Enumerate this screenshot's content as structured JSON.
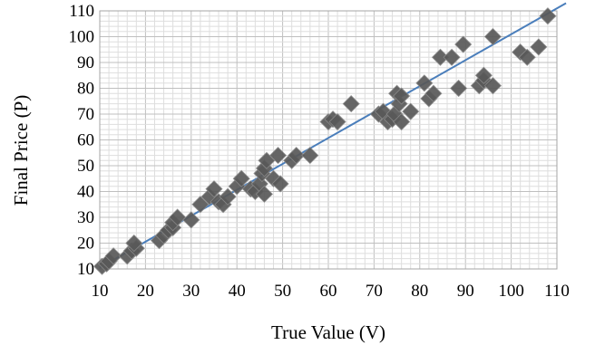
{
  "chart_data": {
    "type": "scatter",
    "title": "",
    "xlabel": "True Value (V)",
    "ylabel": "Final Price (P)",
    "xlim": [
      10,
      110
    ],
    "ylim": [
      10,
      110
    ],
    "x_ticks": [
      "10",
      "20",
      "30",
      "40",
      "50",
      "60",
      "70",
      "80",
      "90",
      "100",
      "110"
    ],
    "y_ticks": [
      "10",
      "20",
      "30",
      "40",
      "50",
      "60",
      "70",
      "80",
      "90",
      "100",
      "110"
    ],
    "grid": true,
    "legend": "none",
    "marker": "diamond",
    "marker_color": "#595959",
    "line_color": "#4a7ebb",
    "grid_major_color": "#bfbfbf",
    "grid_minor_color": "#dedede",
    "points": [
      [
        10.5,
        11
      ],
      [
        11.5,
        12
      ],
      [
        12,
        13
      ],
      [
        13,
        15
      ],
      [
        16,
        15
      ],
      [
        17,
        17
      ],
      [
        18,
        18
      ],
      [
        17.5,
        20
      ],
      [
        23,
        21
      ],
      [
        24,
        23
      ],
      [
        25,
        25
      ],
      [
        26,
        26
      ],
      [
        26,
        28
      ],
      [
        27,
        30
      ],
      [
        30,
        29
      ],
      [
        32,
        35
      ],
      [
        34,
        38
      ],
      [
        35,
        41
      ],
      [
        36,
        36
      ],
      [
        37,
        35
      ],
      [
        38,
        38
      ],
      [
        40,
        42
      ],
      [
        41,
        45
      ],
      [
        43,
        41
      ],
      [
        44,
        40
      ],
      [
        45,
        43
      ],
      [
        45.5,
        47
      ],
      [
        46,
        49
      ],
      [
        46,
        39
      ],
      [
        46.5,
        52
      ],
      [
        48,
        45
      ],
      [
        49,
        54
      ],
      [
        49.5,
        43
      ],
      [
        52,
        52
      ],
      [
        53,
        54
      ],
      [
        56,
        54
      ],
      [
        60,
        67
      ],
      [
        61,
        68
      ],
      [
        62,
        67
      ],
      [
        65,
        74
      ],
      [
        71,
        70
      ],
      [
        72,
        71
      ],
      [
        73,
        67
      ],
      [
        74,
        68
      ],
      [
        74.5,
        70
      ],
      [
        75,
        78
      ],
      [
        75.5,
        74
      ],
      [
        76,
        67
      ],
      [
        76,
        77
      ],
      [
        78,
        71
      ],
      [
        81,
        82
      ],
      [
        82,
        76
      ],
      [
        83,
        78
      ],
      [
        84.5,
        92
      ],
      [
        87,
        92
      ],
      [
        88.5,
        80
      ],
      [
        89.5,
        97
      ],
      [
        93,
        81
      ],
      [
        94,
        83
      ],
      [
        94,
        85
      ],
      [
        96,
        100
      ],
      [
        96,
        81
      ],
      [
        102,
        94
      ],
      [
        103.5,
        92
      ],
      [
        106,
        96
      ],
      [
        108,
        108
      ]
    ],
    "trendline": {
      "type": "linear",
      "from": [
        10,
        10.5
      ],
      "to": [
        112,
        113
      ]
    }
  }
}
